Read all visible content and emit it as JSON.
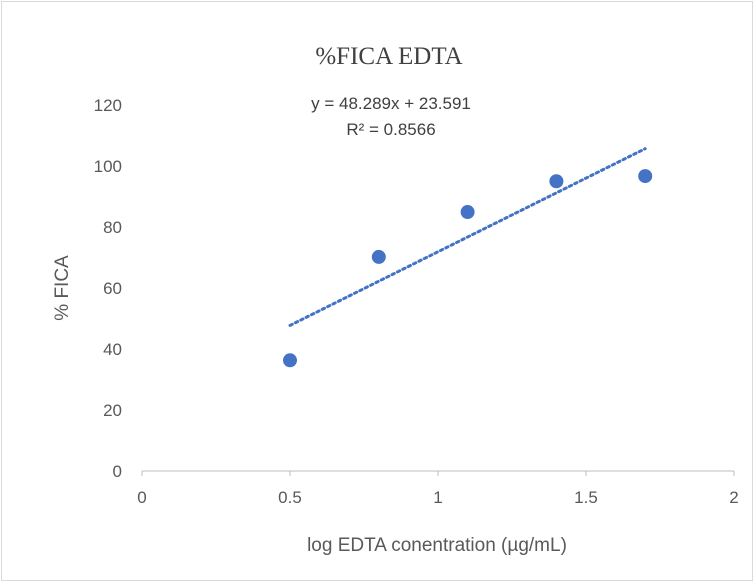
{
  "chart_data": {
    "type": "scatter",
    "title": "%FICA EDTA",
    "xlabel": "log EDTA conentration (µg/mL)",
    "ylabel": "% FICA",
    "xlim": [
      0,
      2
    ],
    "ylim": [
      0,
      120
    ],
    "x_ticks": [
      "0",
      "0.5",
      "1",
      "1.5",
      "2"
    ],
    "y_ticks": [
      "0",
      "20",
      "40",
      "60",
      "80",
      "100",
      "120"
    ],
    "grid": false,
    "legend": false,
    "series": [
      {
        "x": [
          0.5,
          0.8,
          1.1,
          1.4,
          1.7
        ],
        "y": [
          36.3,
          70.2,
          84.9,
          95.0,
          96.7
        ],
        "color": "#4472c4"
      }
    ],
    "trendline": {
      "type": "linear",
      "slope": 48.289,
      "intercept": 23.591,
      "x_range": [
        0.5,
        1.7
      ],
      "color": "#4472c4",
      "style": "dotted",
      "equation": "y = 48.289x + 23.591",
      "r_squared": "R² = 0.8566"
    }
  }
}
